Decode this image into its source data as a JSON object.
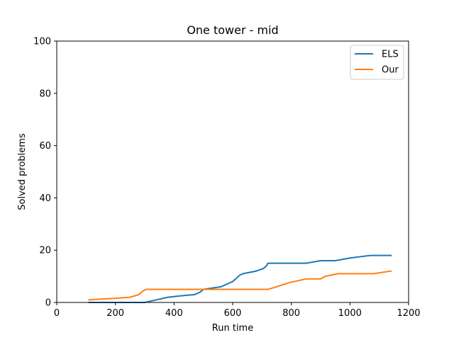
{
  "chart_data": {
    "type": "line",
    "title": "One tower - mid",
    "xlabel": "Run time",
    "ylabel": "Solved problems",
    "xlim": [
      0,
      1200
    ],
    "ylim": [
      0,
      100
    ],
    "xticks": [
      0,
      200,
      400,
      600,
      800,
      1000,
      1200
    ],
    "yticks": [
      0,
      20,
      40,
      60,
      80,
      100
    ],
    "grid": false,
    "legend_position": "top-right",
    "series": [
      {
        "name": "ELS",
        "color": "#1f77b4",
        "x": [
          110,
          300,
          340,
          380,
          420,
          470,
          490,
          500,
          560,
          600,
          615,
          625,
          635,
          680,
          705,
          715,
          720,
          800,
          850,
          900,
          950,
          1000,
          1070,
          1140
        ],
        "y": [
          0,
          0,
          1,
          2,
          2.5,
          3,
          4,
          5,
          6,
          8,
          9.5,
          10.5,
          11,
          12,
          13,
          14,
          15,
          15,
          15,
          16,
          16,
          17,
          18,
          18
        ]
      },
      {
        "name": "Our",
        "color": "#ff7f0e",
        "x": [
          110,
          150,
          200,
          250,
          280,
          295,
          305,
          400,
          500,
          600,
          720,
          750,
          790,
          850,
          900,
          915,
          960,
          1000,
          1080,
          1140
        ],
        "y": [
          1,
          1.3,
          1.6,
          2,
          3,
          4.5,
          5,
          5,
          5,
          5,
          5,
          6,
          7.5,
          9,
          9,
          10,
          11,
          11,
          11,
          12
        ]
      }
    ]
  }
}
